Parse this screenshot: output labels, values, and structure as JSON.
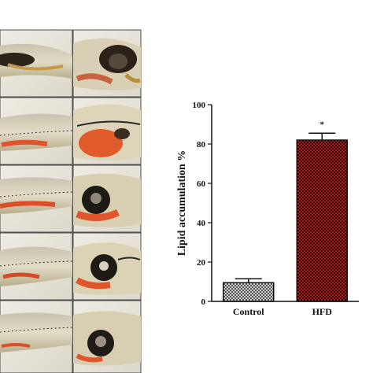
{
  "figure": {
    "panel_description_hidden": "",
    "colors": {
      "control_fill": "#8c8c8c",
      "hfd_fill": "#8b1a1a",
      "axis": "#111111",
      "photo_bg": "#e9e6dc",
      "stain_red": "#d9502a",
      "fish_tan": "#c8b27a"
    }
  },
  "chart_data": {
    "type": "bar",
    "categories": [
      "Control",
      "HFD"
    ],
    "values": [
      9.5,
      82
    ],
    "errors": [
      2,
      3.5
    ],
    "annotations": [
      "",
      "*"
    ],
    "ylabel": "Lipid accumulation %",
    "xlabel": "",
    "ylim": [
      0,
      100
    ],
    "yticks": [
      "0",
      "20",
      "40",
      "60",
      "80",
      "100"
    ],
    "grid": false
  }
}
